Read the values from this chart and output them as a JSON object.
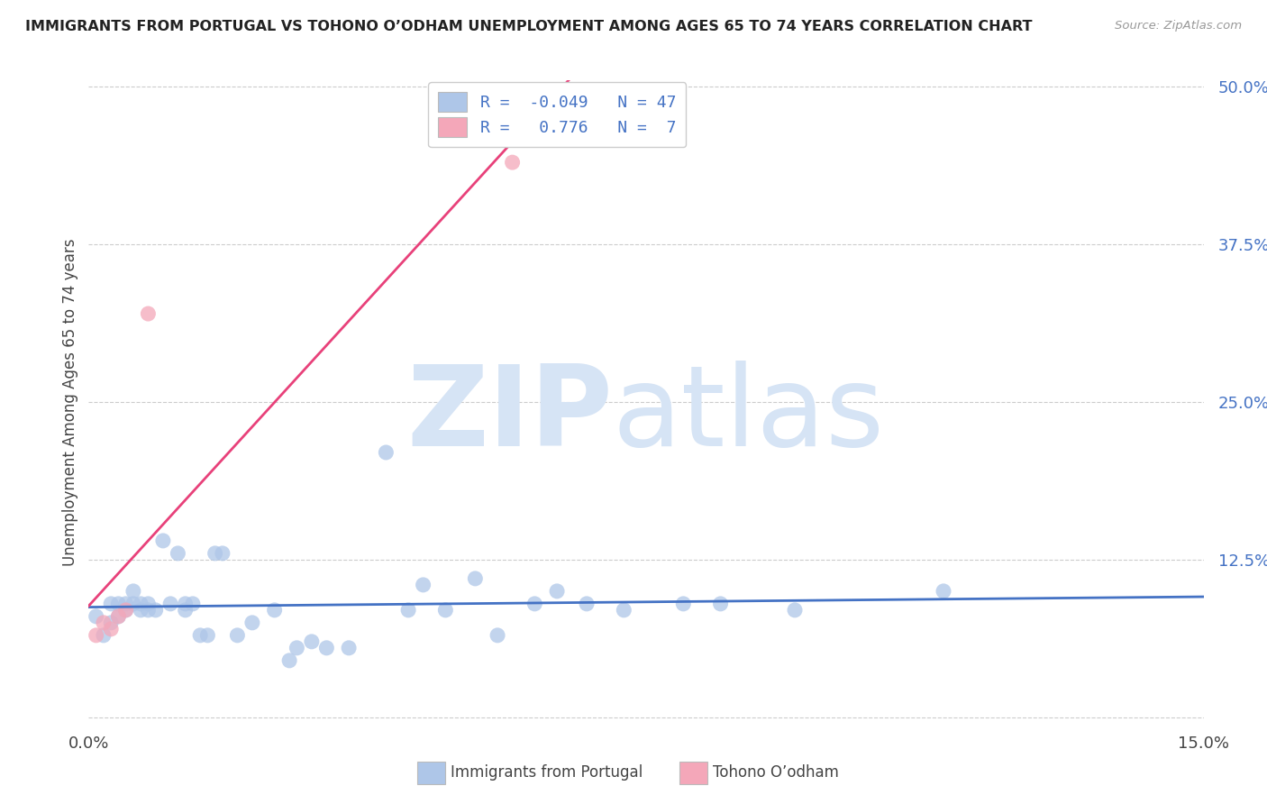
{
  "title": "IMMIGRANTS FROM PORTUGAL VS TOHONO O’ODHAM UNEMPLOYMENT AMONG AGES 65 TO 74 YEARS CORRELATION CHART",
  "source": "Source: ZipAtlas.com",
  "ylabel": "Unemployment Among Ages 65 to 74 years",
  "xlabel_blue": "Immigrants from Portugal",
  "xlabel_pink": "Tohono O’odham",
  "xlim": [
    0.0,
    0.15
  ],
  "ylim": [
    -0.005,
    0.505
  ],
  "yticks": [
    0.0,
    0.125,
    0.25,
    0.375,
    0.5
  ],
  "ytick_labels": [
    "",
    "12.5%",
    "25.0%",
    "37.5%",
    "50.0%"
  ],
  "xticks": [
    0.0,
    0.15
  ],
  "xtick_labels": [
    "0.0%",
    "15.0%"
  ],
  "r_blue": -0.049,
  "n_blue": 47,
  "r_pink": 0.776,
  "n_pink": 7,
  "blue_color": "#aec6e8",
  "pink_color": "#f4a7b9",
  "line_blue": "#4472c4",
  "line_pink": "#e8417a",
  "watermark_zip": "ZIP",
  "watermark_atlas": "atlas",
  "watermark_color": "#d6e4f5",
  "blue_scatter_x": [
    0.001,
    0.002,
    0.003,
    0.003,
    0.004,
    0.004,
    0.005,
    0.005,
    0.006,
    0.006,
    0.007,
    0.007,
    0.008,
    0.008,
    0.009,
    0.01,
    0.011,
    0.012,
    0.013,
    0.013,
    0.014,
    0.015,
    0.016,
    0.017,
    0.018,
    0.02,
    0.022,
    0.025,
    0.027,
    0.028,
    0.03,
    0.032,
    0.035,
    0.04,
    0.043,
    0.045,
    0.048,
    0.052,
    0.055,
    0.06,
    0.063,
    0.067,
    0.072,
    0.08,
    0.085,
    0.095,
    0.115
  ],
  "blue_scatter_y": [
    0.08,
    0.065,
    0.09,
    0.075,
    0.08,
    0.09,
    0.085,
    0.09,
    0.09,
    0.1,
    0.085,
    0.09,
    0.09,
    0.085,
    0.085,
    0.14,
    0.09,
    0.13,
    0.09,
    0.085,
    0.09,
    0.065,
    0.065,
    0.13,
    0.13,
    0.065,
    0.075,
    0.085,
    0.045,
    0.055,
    0.06,
    0.055,
    0.055,
    0.21,
    0.085,
    0.105,
    0.085,
    0.11,
    0.065,
    0.09,
    0.1,
    0.09,
    0.085,
    0.09,
    0.09,
    0.085,
    0.1
  ],
  "pink_scatter_x": [
    0.001,
    0.002,
    0.003,
    0.004,
    0.005,
    0.008,
    0.057
  ],
  "pink_scatter_y": [
    0.065,
    0.075,
    0.07,
    0.08,
    0.085,
    0.32,
    0.44
  ]
}
